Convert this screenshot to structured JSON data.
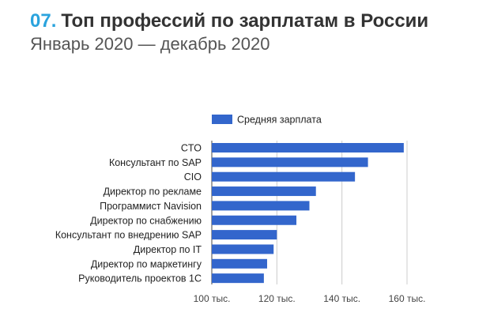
{
  "header": {
    "number": "07.",
    "title": "Топ профессий по зарплатам в России",
    "subtitle": "Январь 2020 — декабрь 2020"
  },
  "chart_data": {
    "type": "bar",
    "orientation": "horizontal",
    "categories": [
      "CTO",
      "Консультант по SAP",
      "CIO",
      "Директор по рекламе",
      "Программист Navision",
      "Директор по снабжению",
      "Консультант по внедрению SAP",
      "Директор по IT",
      "Директор по маркетингу",
      "Руководитель проектов 1С"
    ],
    "series": [
      {
        "name": "Средняя зарплата",
        "color": "#3366cc",
        "values": [
          159,
          148,
          144,
          132,
          130,
          126,
          120,
          119,
          117,
          116
        ]
      }
    ],
    "xlim": [
      100,
      160
    ],
    "x_ticks": [
      100,
      120,
      140,
      160
    ],
    "x_tick_labels": [
      "100 тыс.",
      "120 тыс.",
      "140 тыс.",
      "160 тыс."
    ],
    "legend_position": "top",
    "grid": true,
    "title": "",
    "xlabel": "",
    "ylabel": ""
  }
}
